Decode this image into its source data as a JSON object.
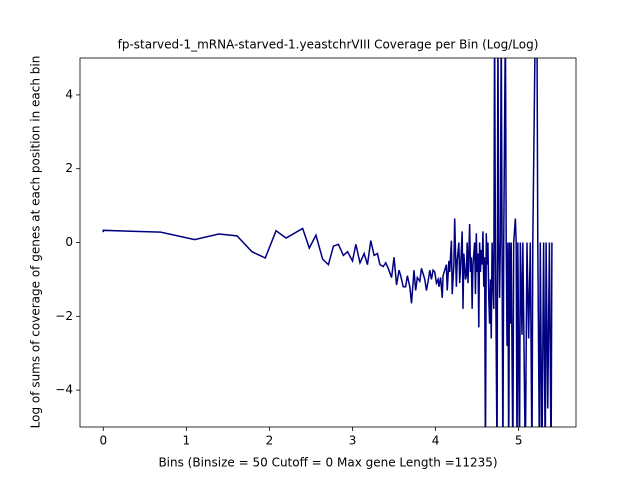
{
  "chart_data": {
    "type": "line",
    "title": "fp-starved-1_mRNA-starved-1.yeastchrVIII Coverage per Bin (Log/Log)",
    "xlabel": "Bins  (Binsize = 50 Cutoff = 0 Max gene Length =11235)",
    "ylabel": "Log of sums of coverage of genes at each position in each bin",
    "xlim": [
      -0.28,
      5.69
    ],
    "ylim": [
      -5,
      5
    ],
    "xticks": [
      0,
      1,
      2,
      3,
      4,
      5
    ],
    "yticks": [
      {
        "value": -4,
        "label": "−4"
      },
      {
        "value": -2,
        "label": "−2"
      },
      0,
      2,
      4
    ],
    "grid": false,
    "series": [
      {
        "color": "#000080",
        "x": [
          0,
          0,
          0.69,
          1.1,
          1.39,
          1.61,
          1.79,
          1.95,
          2.08,
          2.2,
          2.4,
          2.48,
          2.56,
          2.64,
          2.71,
          2.77,
          2.83,
          2.89,
          2.94,
          3.0,
          3.04,
          3.09,
          3.14,
          3.18,
          3.22,
          3.26,
          3.3,
          3.33,
          3.37,
          3.4,
          3.43,
          3.47,
          3.5,
          3.53,
          3.56,
          3.58,
          3.61,
          3.64,
          3.66,
          3.69,
          3.71,
          3.74,
          3.76,
          3.78,
          3.81,
          3.83,
          3.85,
          3.87,
          3.89,
          3.91,
          3.93,
          3.95,
          3.97,
          3.99,
          4.01,
          4.03,
          4.04,
          4.06,
          4.08,
          4.09,
          4.11,
          4.13,
          4.14,
          4.16,
          4.17,
          4.19,
          4.2,
          4.22,
          4.23,
          4.25,
          4.26,
          4.28,
          4.29,
          4.3,
          4.32,
          4.33,
          4.34,
          4.36,
          4.37,
          4.38,
          4.39,
          4.41,
          4.42,
          4.43,
          4.44,
          4.45,
          4.47,
          4.48,
          4.49,
          4.5,
          4.51,
          4.52,
          4.53,
          4.54,
          4.55,
          4.56,
          4.57,
          4.58,
          4.59,
          4.6,
          4.61,
          4.62,
          4.63,
          4.64,
          4.65,
          4.66,
          4.67,
          4.68,
          4.69,
          4.7,
          4.71,
          4.72,
          4.74,
          4.75,
          4.76,
          4.77,
          4.78,
          4.79,
          4.8,
          4.81,
          4.82,
          4.84,
          4.85,
          4.86,
          4.87,
          4.88,
          4.89,
          4.9,
          4.91,
          4.93,
          4.94,
          4.96,
          4.97,
          4.98,
          4.99,
          5.01,
          5.02,
          5.04,
          5.05,
          5.08,
          5.1,
          5.12,
          5.14,
          5.16,
          5.17,
          5.2,
          5.22,
          5.23,
          5.25,
          5.26,
          5.28,
          5.3,
          5.32,
          5.33,
          5.35,
          5.37,
          5.39,
          5.4
        ],
        "values": [
          0.28,
          0.33,
          0.28,
          0.08,
          0.23,
          0.18,
          -0.25,
          -0.42,
          0.32,
          0.12,
          0.38,
          -0.15,
          0.2,
          -0.45,
          -0.6,
          -0.1,
          -0.05,
          -0.35,
          -0.25,
          -0.5,
          -0.05,
          -0.55,
          -0.3,
          -0.6,
          0.05,
          -0.35,
          -0.3,
          -0.6,
          -0.65,
          -0.55,
          -0.7,
          -0.95,
          -0.4,
          -1.15,
          -0.75,
          -0.9,
          -1.2,
          -1.2,
          -0.9,
          -1.2,
          -1.65,
          -0.75,
          -1.3,
          -0.95,
          -1.05,
          -0.7,
          -0.85,
          -1.0,
          -1.3,
          -1.05,
          -0.75,
          -1.0,
          -0.75,
          -0.8,
          -1.1,
          -1.0,
          -1.2,
          -0.95,
          -1.5,
          -0.9,
          -0.75,
          -0.6,
          -1.3,
          -0.5,
          -0.8,
          0.05,
          -1.4,
          -0.6,
          0.65,
          -1.2,
          -0.5,
          0,
          -1.1,
          -0.7,
          0.3,
          -1.8,
          -0.3,
          -1.0,
          -0.9,
          0,
          -1.1,
          0.5,
          -0.8,
          -0.4,
          -1.8,
          -0.6,
          0,
          -1.4,
          0.25,
          -0.8,
          -0.3,
          -2.3,
          0,
          -0.8,
          -0.2,
          -0.6,
          0.3,
          -1.2,
          -0.4,
          -6,
          0.25,
          -0.6,
          0,
          -1.5,
          -2.2,
          -1.0,
          -2.6,
          0,
          -1,
          -1.8,
          6,
          0,
          -6,
          6,
          0,
          -1.5,
          0,
          6,
          0,
          -6,
          0,
          6,
          0,
          -2.8,
          0,
          -6,
          0,
          -2.2,
          0,
          -6,
          0,
          0.65,
          0,
          -6,
          0,
          -6,
          0,
          -2.5,
          0,
          -6,
          0,
          -2.6,
          0,
          -6,
          0,
          6,
          6,
          0,
          -6,
          0,
          -6,
          0,
          -6,
          0,
          -4.5,
          0,
          -6,
          0
        ]
      }
    ]
  }
}
